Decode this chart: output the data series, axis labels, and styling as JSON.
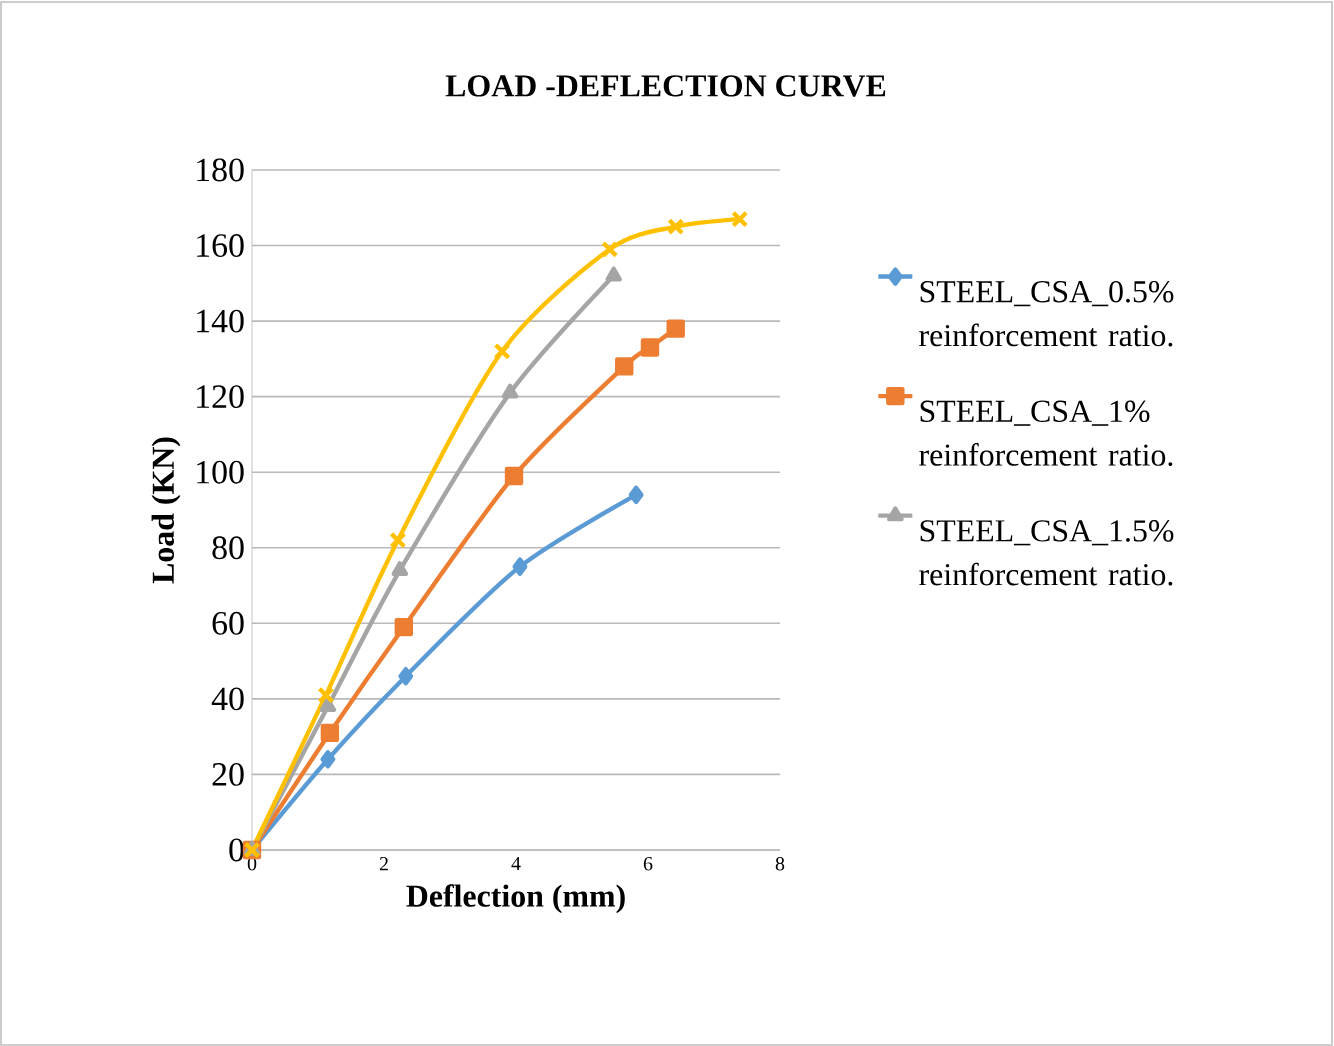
{
  "chart_data": {
    "type": "line",
    "title": "LOAD -DEFLECTION CURVE",
    "xlabel": "Deflection (mm)",
    "ylabel": "Load (KN)",
    "xlim": [
      0,
      8
    ],
    "xticks": [
      0,
      2,
      4,
      6,
      8
    ],
    "ylim": [
      0,
      180
    ],
    "yticks": [
      0,
      20,
      40,
      60,
      80,
      100,
      120,
      140,
      160,
      180
    ],
    "grid": "y",
    "legend": "right",
    "series": [
      {
        "name": "STEEL_CSA_0.5% reinforcement ratio.",
        "color": "#5b9bd5",
        "marker": "diamond",
        "x": [
          0,
          1.15,
          2.33,
          4.06,
          5.82
        ],
        "values": [
          0,
          24,
          46,
          75,
          94
        ]
      },
      {
        "name": "STEEL_CSA_1% reinforcement ratio.",
        "color": "#ed7d31",
        "marker": "square",
        "x": [
          0,
          1.18,
          2.3,
          3.97,
          5.64,
          6.03,
          6.42
        ],
        "values": [
          0,
          31,
          59,
          99,
          128,
          133,
          138
        ]
      },
      {
        "name": "STEEL_CSA_1.5% reinforcement ratio.",
        "color": "#a5a5a5",
        "marker": "triangle",
        "x": [
          0,
          1.15,
          2.24,
          3.91,
          5.48
        ],
        "values": [
          0,
          38,
          74,
          121,
          152
        ]
      },
      {
        "color": "#ffc000",
        "marker": "cross",
        "x": [
          0,
          1.12,
          2.21,
          3.79,
          5.42,
          6.42,
          7.39
        ],
        "values": [
          0,
          41,
          82,
          132,
          159,
          165,
          167
        ]
      }
    ]
  }
}
